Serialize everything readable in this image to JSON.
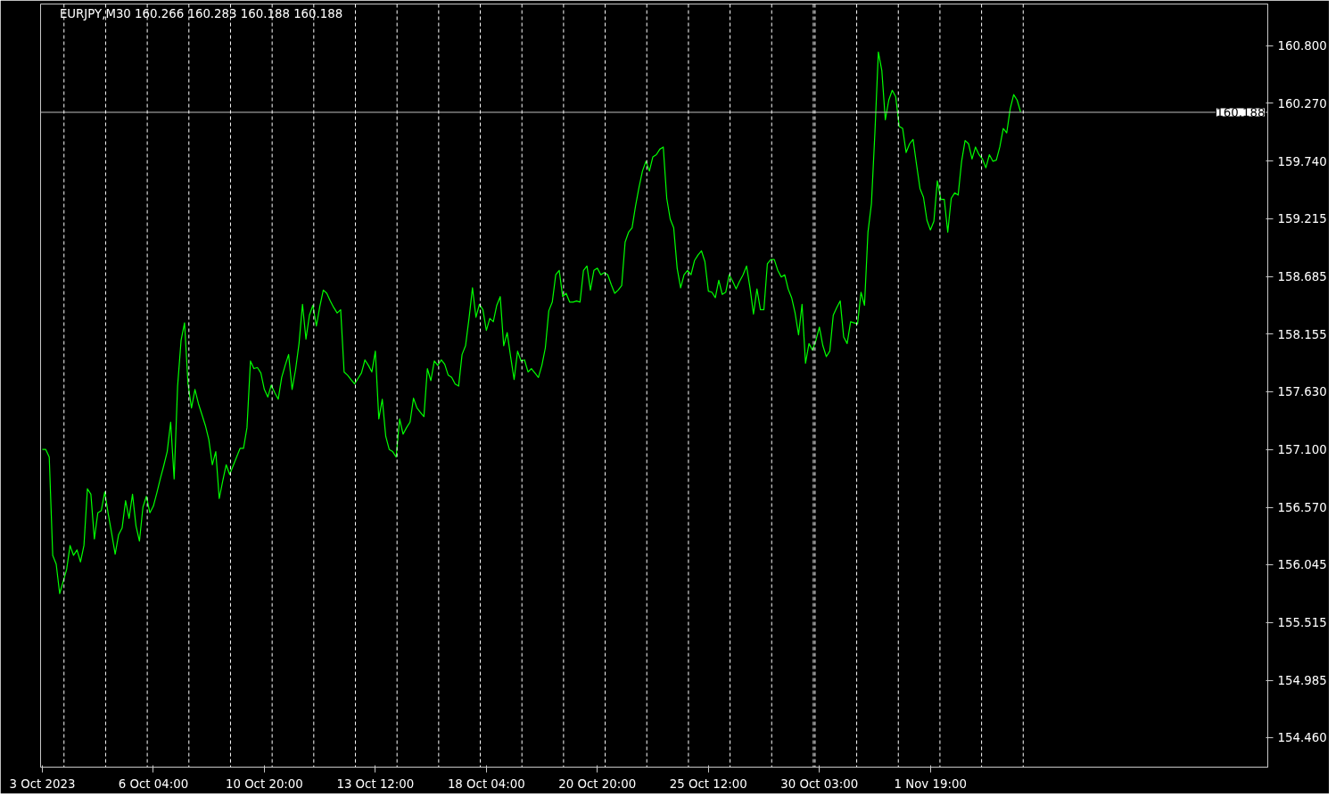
{
  "chart_data": {
    "type": "line",
    "title": "EURJPY,M30  160.266 160.283 160.188 160.188",
    "ylim": [
      154.19,
      161.18
    ],
    "yticks": [
      {
        "value": 154.46,
        "label": "154.460"
      },
      {
        "value": 154.985,
        "label": "154.985"
      },
      {
        "value": 155.515,
        "label": "155.515"
      },
      {
        "value": 156.045,
        "label": "156.045"
      },
      {
        "value": 156.57,
        "label": "156.570"
      },
      {
        "value": 157.1,
        "label": "157.100"
      },
      {
        "value": 157.63,
        "label": "157.630"
      },
      {
        "value": 158.155,
        "label": "158.155"
      },
      {
        "value": 158.685,
        "label": "158.685"
      },
      {
        "value": 159.215,
        "label": "159.215"
      },
      {
        "value": 159.74,
        "label": "159.740"
      },
      {
        "value": 160.27,
        "label": "160.270"
      },
      {
        "value": 160.8,
        "label": "160.800"
      }
    ],
    "line_style": "solid",
    "categories": [
      "3 Oct 2023",
      null,
      null,
      null,
      null,
      null,
      null,
      null,
      null,
      null,
      null,
      null,
      null,
      null,
      null,
      null,
      null,
      null,
      null,
      null,
      null,
      null,
      null,
      null,
      null,
      null,
      null,
      null,
      null,
      null,
      null,
      null,
      "6 Oct 04:00",
      null,
      null,
      null,
      null,
      null,
      null,
      null,
      null,
      null,
      null,
      null,
      null,
      null,
      null,
      null,
      null,
      null,
      null,
      null,
      null,
      null,
      null,
      null,
      null,
      null,
      null,
      null,
      null,
      null,
      null,
      null,
      "10 Oct 20:00",
      null,
      null,
      null,
      null,
      null,
      null,
      null,
      null,
      null,
      null,
      null,
      null,
      null,
      null,
      null,
      null,
      null,
      null,
      null,
      null,
      null,
      null,
      null,
      null,
      null,
      null,
      null,
      null,
      null,
      null,
      null,
      "13 Oct 12:00",
      null,
      null,
      null,
      null,
      null,
      null,
      null,
      null,
      null,
      null,
      null,
      null,
      null,
      null,
      null,
      null,
      null,
      null,
      null,
      null,
      null,
      null,
      null,
      null,
      null,
      null,
      null,
      null,
      null,
      null,
      null,
      "18 Oct 04:00",
      null,
      null,
      null,
      null,
      null,
      null,
      null,
      null,
      null,
      null,
      null,
      null,
      null,
      null,
      null,
      null,
      null,
      null,
      null,
      null,
      null,
      null,
      null,
      null,
      null,
      null,
      null,
      null,
      null,
      null,
      null,
      "20 Oct 20:00",
      null,
      null,
      null,
      null,
      null,
      null,
      null,
      null,
      null,
      null,
      null,
      null,
      null,
      null,
      null,
      null,
      null,
      null,
      null,
      null,
      null,
      null,
      null,
      null,
      null,
      null,
      null,
      null,
      null,
      null,
      null,
      "25 Oct 12:00",
      null,
      null,
      null,
      null,
      null,
      null,
      null,
      null,
      null,
      null,
      null,
      null,
      null,
      null,
      null,
      null,
      null,
      null,
      null,
      null,
      null,
      null,
      null,
      null,
      null,
      null,
      null,
      null,
      null,
      null,
      null,
      "30 Oct 03:00",
      null,
      null,
      null,
      null,
      null,
      null,
      null,
      null,
      null,
      null,
      null,
      null,
      null,
      null,
      null,
      null,
      null,
      null,
      null,
      null,
      null,
      null,
      null,
      null,
      null,
      null,
      null,
      null,
      null,
      null,
      null,
      "1 Nov 19:00",
      null,
      null,
      null,
      null,
      null,
      null,
      null,
      null,
      null,
      null,
      null,
      null,
      null,
      null,
      null,
      null,
      null,
      null,
      null,
      null,
      null,
      null,
      null,
      null,
      null,
      null
    ],
    "ref_lines": [
      {
        "axis": "y",
        "value": 160.188,
        "label": "160.188",
        "color": "#c0c0c0",
        "line_style": "solid"
      }
    ],
    "series": [
      {
        "color": "#00ff00",
        "values": [
          157.1,
          157.1,
          157.03,
          156.13,
          156.05,
          155.78,
          155.89,
          156.0,
          156.22,
          156.13,
          156.18,
          156.07,
          156.22,
          156.74,
          156.69,
          156.28,
          156.52,
          156.54,
          156.71,
          156.51,
          156.33,
          156.14,
          156.32,
          156.38,
          156.63,
          156.47,
          156.69,
          156.4,
          156.26,
          156.57,
          156.67,
          156.52,
          156.58,
          156.7,
          156.83,
          156.95,
          157.08,
          157.35,
          156.83,
          157.68,
          158.1,
          158.26,
          157.7,
          157.48,
          157.65,
          157.52,
          157.42,
          157.32,
          157.19,
          156.96,
          157.08,
          156.65,
          156.81,
          156.96,
          156.87,
          156.95,
          157.03,
          157.11,
          157.11,
          157.3,
          157.91,
          157.84,
          157.85,
          157.8,
          157.65,
          157.58,
          157.69,
          157.62,
          157.56,
          157.76,
          157.87,
          157.97,
          157.65,
          157.83,
          158.07,
          158.43,
          158.11,
          158.33,
          158.42,
          158.23,
          158.41,
          158.56,
          158.53,
          158.46,
          158.4,
          158.35,
          158.38,
          157.81,
          157.78,
          157.74,
          157.7,
          157.75,
          157.8,
          157.92,
          157.87,
          157.81,
          158.0,
          157.38,
          157.56,
          157.22,
          157.1,
          157.08,
          157.03,
          157.38,
          157.24,
          157.3,
          157.35,
          157.57,
          157.48,
          157.44,
          157.4,
          157.84,
          157.73,
          157.91,
          157.87,
          157.92,
          157.88,
          157.78,
          157.76,
          157.7,
          157.68,
          157.97,
          158.05,
          158.3,
          158.58,
          158.31,
          158.43,
          158.38,
          158.19,
          158.3,
          158.27,
          158.42,
          158.5,
          158.05,
          158.17,
          157.95,
          157.74,
          158.0,
          157.91,
          157.92,
          157.81,
          157.84,
          157.8,
          157.76,
          157.87,
          158.03,
          158.37,
          158.45,
          158.7,
          158.74,
          158.5,
          158.53,
          158.45,
          158.45,
          158.46,
          158.45,
          158.74,
          158.78,
          158.56,
          158.74,
          158.76,
          158.7,
          158.72,
          158.7,
          158.61,
          158.53,
          158.56,
          158.6,
          159.0,
          159.09,
          159.13,
          159.33,
          159.5,
          159.65,
          159.74,
          159.65,
          159.78,
          159.8,
          159.85,
          159.87,
          159.4,
          159.21,
          159.13,
          158.76,
          158.58,
          158.7,
          158.74,
          158.7,
          158.83,
          158.88,
          158.92,
          158.82,
          158.55,
          158.54,
          158.49,
          158.65,
          158.52,
          158.54,
          158.7,
          158.64,
          158.57,
          158.64,
          158.7,
          158.78,
          158.58,
          158.34,
          158.57,
          158.38,
          158.38,
          158.8,
          158.84,
          158.84,
          158.74,
          158.68,
          158.7,
          158.57,
          158.49,
          158.35,
          158.15,
          158.43,
          157.89,
          158.07,
          158.01,
          158.1,
          158.22,
          158.05,
          157.95,
          158.0,
          158.33,
          158.4,
          158.46,
          158.13,
          158.07,
          158.27,
          158.26,
          158.25,
          158.54,
          158.42,
          159.09,
          159.35,
          160.0,
          160.74,
          160.57,
          160.12,
          160.3,
          160.39,
          160.33,
          160.06,
          160.04,
          159.82,
          159.9,
          159.94,
          159.71,
          159.49,
          159.41,
          159.2,
          159.11,
          159.19,
          159.56,
          159.39,
          159.39,
          159.09,
          159.4,
          159.45,
          159.43,
          159.74,
          159.93,
          159.9,
          159.76,
          159.87,
          159.8,
          159.76,
          159.68,
          159.8,
          159.74,
          159.75,
          159.87,
          160.04,
          160.0,
          160.22,
          160.35,
          160.3,
          160.19
        ]
      }
    ]
  }
}
